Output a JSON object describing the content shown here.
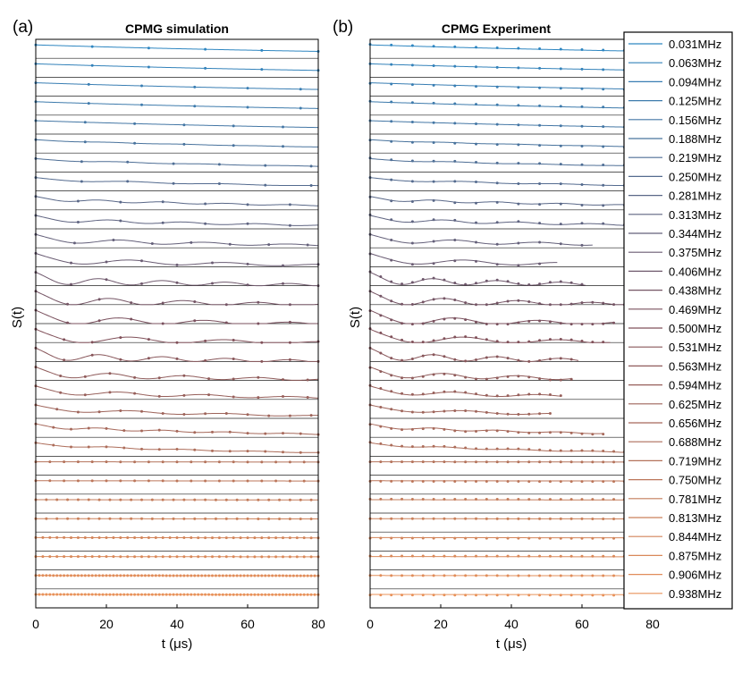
{
  "chart_data": [
    {
      "type": "line",
      "panel_label": "(a)",
      "title": "CPMG simulation",
      "xlabel": "t (μs)",
      "ylabel": "S(t)",
      "xlim": [
        0,
        80
      ],
      "x_ticks": [
        "0",
        "20",
        "40",
        "60",
        "80"
      ],
      "grid": false,
      "legend": "none",
      "series_count": 30,
      "description_values": "30 vertically stacked normalized CPMG signal traces, one per driving frequency (0.031–0.938 MHz)",
      "series_max_time_us": [
        80,
        80,
        80,
        80,
        80,
        80,
        80,
        80,
        80,
        80,
        80,
        80,
        80,
        80,
        80,
        80,
        80,
        80,
        80,
        80,
        80,
        80,
        80,
        80,
        80,
        80,
        80,
        80,
        80,
        80
      ]
    },
    {
      "type": "line",
      "panel_label": "(b)",
      "title": "CPMG Experiment",
      "xlabel": "t (μs)",
      "ylabel": "S(t)",
      "xlim": [
        0,
        80
      ],
      "x_ticks": [
        "0",
        "20",
        "40",
        "60",
        "80"
      ],
      "grid": false,
      "legend": "right",
      "series_count": 30,
      "series_max_time_us": [
        80,
        80,
        80,
        80,
        80,
        80,
        80,
        80,
        80,
        80,
        63,
        53,
        61,
        80,
        69,
        68,
        59,
        57,
        54,
        51,
        66,
        80,
        80,
        80,
        80,
        80,
        80,
        80,
        80,
        80
      ]
    }
  ],
  "legend": {
    "entries": [
      "0.031MHz",
      "0.063MHz",
      "0.094MHz",
      "0.125MHz",
      "0.156MHz",
      "0.188MHz",
      "0.219MHz",
      "0.250MHz",
      "0.281MHz",
      "0.313MHz",
      "0.344MHz",
      "0.375MHz",
      "0.406MHz",
      "0.438MHz",
      "0.469MHz",
      "0.500MHz",
      "0.531MHz",
      "0.563MHz",
      "0.594MHz",
      "0.625MHz",
      "0.656MHz",
      "0.688MHz",
      "0.719MHz",
      "0.750MHz",
      "0.781MHz",
      "0.813MHz",
      "0.844MHz",
      "0.875MHz",
      "0.906MHz",
      "0.938MHz"
    ]
  },
  "colors": {
    "start": "#2e86c1",
    "mid": "#7d4f5a",
    "end": "#e8925a",
    "axis": "#000000",
    "baseline": "#333333"
  }
}
